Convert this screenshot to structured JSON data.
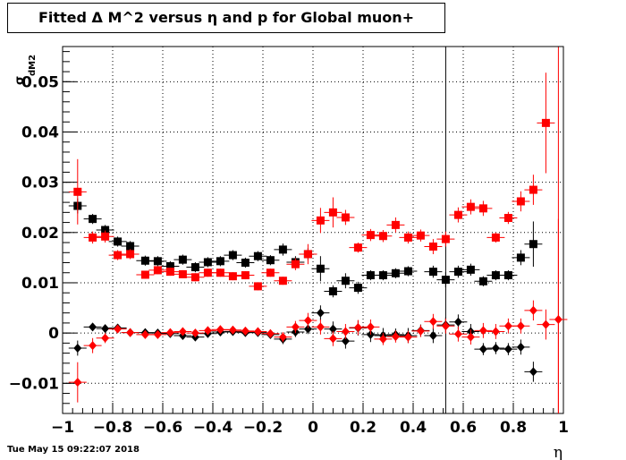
{
  "chart_data": {
    "type": "scatter",
    "title": "Fitted Δ M^2 versus η and p for Global muon+",
    "xlabel": "η",
    "ylabel": "σ",
    "ylabel_sub": "dM2",
    "xlim": [
      -1,
      1
    ],
    "ylim": [
      -0.016,
      0.057
    ],
    "xticks": [
      -1,
      -0.8,
      -0.6,
      -0.4,
      -0.2,
      0,
      0.2,
      0.4,
      0.6,
      0.8,
      1
    ],
    "xtick_labels": [
      "−1",
      "−0.8",
      "−0.6",
      "−0.4",
      "−0.2",
      "0",
      "0.2",
      "0.4",
      "0.6",
      "0.8",
      "1"
    ],
    "yticks": [
      -0.01,
      0,
      0.01,
      0.02,
      0.03,
      0.04,
      0.05
    ],
    "ytick_labels": [
      "−0.01",
      "0",
      "0.01",
      "0.02",
      "0.03",
      "0.04",
      "0.05"
    ],
    "grid": true,
    "vertical_lines": [
      0.53,
      0.98
    ],
    "x": [
      -0.94,
      -0.88,
      -0.83,
      -0.78,
      -0.73,
      -0.67,
      -0.62,
      -0.57,
      -0.52,
      -0.47,
      -0.42,
      -0.37,
      -0.32,
      -0.27,
      -0.22,
      -0.17,
      -0.12,
      -0.07,
      -0.02,
      0.03,
      0.08,
      0.13,
      0.18,
      0.23,
      0.28,
      0.33,
      0.38,
      0.43,
      0.48,
      0.53,
      0.58,
      0.63,
      0.68,
      0.73,
      0.78,
      0.83,
      0.88,
      0.93,
      0.98
    ],
    "series": [
      {
        "marker": "square",
        "color": "#000000",
        "values": [
          0.0253,
          0.0227,
          0.0205,
          0.0182,
          0.0173,
          0.0144,
          0.0143,
          0.0133,
          0.0146,
          0.0131,
          0.0141,
          0.0143,
          0.0155,
          0.014,
          0.0153,
          0.0145,
          0.0166,
          0.0141,
          0.0157,
          0.0128,
          0.0083,
          0.0104,
          0.009,
          0.0115,
          0.0115,
          0.0119,
          0.0123,
          null,
          0.0122,
          0.0106,
          0.0122,
          0.0126,
          0.0103,
          0.0115,
          0.0115,
          0.015,
          0.0177,
          null,
          null
        ],
        "errors": [
          0.0015,
          0.001,
          0.001,
          0.001,
          0.001,
          0.001,
          0.001,
          0.001,
          0.001,
          0.001,
          0.001,
          0.001,
          0.001,
          0.001,
          0.001,
          0.001,
          0.0012,
          0.0012,
          0.0012,
          0.0025,
          0.0012,
          0.0015,
          0.0012,
          0.001,
          0.001,
          0.001,
          0.001,
          null,
          0.0012,
          0.0015,
          0.0012,
          0.0012,
          0.001,
          0.001,
          0.001,
          0.0015,
          0.0045,
          null,
          null
        ]
      },
      {
        "marker": "square",
        "color": "#ff0000",
        "values": [
          0.0281,
          0.019,
          0.0192,
          0.0155,
          0.0157,
          0.0116,
          0.0125,
          0.0122,
          0.0117,
          0.0111,
          0.012,
          0.012,
          0.0113,
          0.0115,
          0.0093,
          0.012,
          0.0104,
          0.0137,
          0.0157,
          0.0224,
          0.024,
          0.023,
          0.017,
          0.0195,
          0.0193,
          0.0215,
          0.019,
          0.0194,
          0.0172,
          0.0187,
          0.0235,
          0.0251,
          0.0248,
          0.019,
          0.0229,
          0.0262,
          0.0285,
          0.0418,
          null
        ],
        "errors": [
          0.0065,
          0.0012,
          0.0012,
          0.001,
          0.001,
          0.0008,
          0.0008,
          0.0008,
          0.0008,
          0.0008,
          0.0008,
          0.0008,
          0.0008,
          0.0008,
          0.0008,
          0.0008,
          0.0008,
          0.0012,
          0.002,
          0.0025,
          0.003,
          0.0015,
          0.001,
          0.0012,
          0.0012,
          0.0015,
          0.0012,
          0.0012,
          0.0015,
          0.0015,
          0.0015,
          0.0015,
          0.0015,
          0.001,
          0.0012,
          0.002,
          0.003,
          0.01,
          null
        ]
      },
      {
        "marker": "diamond",
        "color": "#000000",
        "values": [
          -0.003,
          0.0012,
          0.0009,
          0.001,
          0.0001,
          0.0001,
          0.0,
          -0.0001,
          -0.0005,
          -0.0008,
          -0.0001,
          0.0002,
          0.0003,
          0.0001,
          0.0001,
          -0.0003,
          -0.0012,
          0.0002,
          0.0008,
          0.004,
          0.0008,
          -0.0016,
          0.001,
          -0.0003,
          -0.0005,
          -0.0003,
          -0.0005,
          0.0005,
          -0.0005,
          0.0016,
          0.0022,
          0.0003,
          -0.0032,
          -0.003,
          -0.0032,
          -0.0028,
          -0.0077,
          null,
          null
        ],
        "errors": [
          0.0015,
          0.0008,
          0.0008,
          0.0008,
          0.0008,
          0.0008,
          0.0008,
          0.0008,
          0.0008,
          0.0008,
          0.0008,
          0.0008,
          0.0008,
          0.0008,
          0.0008,
          0.0008,
          0.001,
          0.001,
          0.001,
          0.0015,
          0.0015,
          0.0015,
          0.0015,
          0.0015,
          0.0015,
          0.0012,
          0.0015,
          0.0012,
          0.0015,
          0.0015,
          0.0015,
          0.0015,
          0.0012,
          0.0012,
          0.0012,
          0.0015,
          0.002,
          null,
          null
        ]
      },
      {
        "marker": "diamond",
        "color": "#ff0000",
        "values": [
          -0.0098,
          -0.0025,
          -0.001,
          0.0008,
          0.0001,
          -0.0003,
          -0.0003,
          0.0001,
          0.0003,
          0.0,
          0.0005,
          0.0007,
          0.0006,
          0.0004,
          0.0003,
          -0.0001,
          -0.0008,
          0.0012,
          0.0025,
          0.0012,
          -0.0011,
          0.0003,
          0.0011,
          0.0012,
          -0.0012,
          -0.0007,
          -0.0008,
          0.0004,
          0.0023,
          0.0014,
          -0.0002,
          -0.0008,
          0.0005,
          0.0003,
          0.0014,
          0.0014,
          0.0045,
          0.0017,
          0.0027
        ],
        "errors": [
          0.004,
          0.0015,
          0.001,
          0.0008,
          0.0008,
          0.0008,
          0.0008,
          0.0008,
          0.0008,
          0.0008,
          0.0008,
          0.0008,
          0.0008,
          0.0008,
          0.0008,
          0.0008,
          0.001,
          0.0012,
          0.0015,
          0.0015,
          0.0015,
          0.0015,
          0.0015,
          0.0015,
          0.0012,
          0.0012,
          0.0012,
          0.0012,
          0.0015,
          0.0015,
          0.0015,
          0.0015,
          0.0015,
          0.0015,
          0.0015,
          0.0015,
          0.002,
          0.003,
          0.02
        ]
      }
    ]
  },
  "footer": {
    "timestamp": "Tue May 15 09:22:07 2018"
  }
}
